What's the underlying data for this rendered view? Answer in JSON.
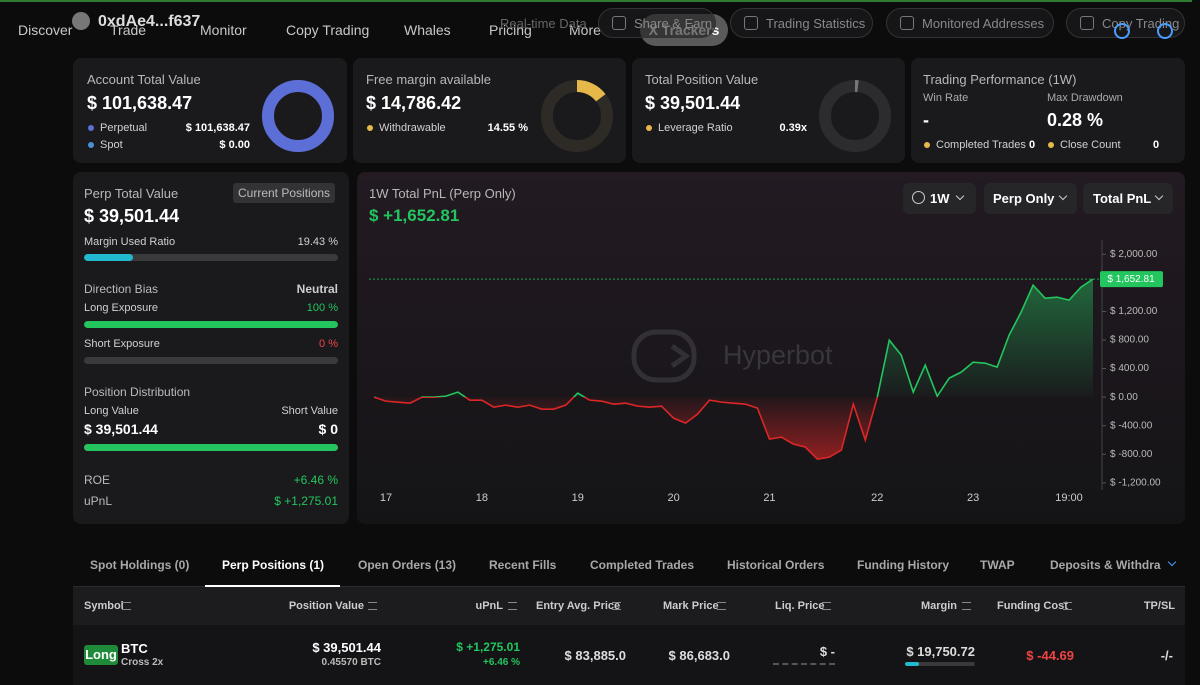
{
  "nav": {
    "user": "0xdAe4...f637",
    "items": [
      "Discover",
      "Trade",
      "Monitor",
      "Copy Trading",
      "Whales",
      "Pricing",
      "More"
    ],
    "active": "X Trackers",
    "actions": [
      "Real-time Data",
      "Share & Earn",
      "Trading Statistics",
      "Monitored Addresses",
      "Copy Trading"
    ]
  },
  "account": {
    "title": "Account Total Value",
    "value": "$ 101,638.47",
    "perpetual": {
      "label": "Perpetual",
      "value": 101638.47,
      "text": "$ 101,638.47"
    },
    "spot": {
      "label": "Spot",
      "value": 0,
      "text": "$ 0.00"
    }
  },
  "margin": {
    "title": "Free margin available",
    "value": "$ 14,786.42",
    "withdrawable": {
      "label": "Withdrawable",
      "value": 14.55,
      "text": "14.55 %"
    }
  },
  "position": {
    "title": "Total Position Value",
    "value": "$ 39,501.44",
    "leverage": {
      "label": "Leverage Ratio",
      "text": "0.39x"
    }
  },
  "performance": {
    "title": "Trading Performance (1W)",
    "win_rate": {
      "label": "Win Rate",
      "text": "-"
    },
    "max_drawdown": {
      "label": "Max Drawdown",
      "text": "0.28 %"
    },
    "completed_trades": {
      "label": "Completed Trades",
      "text": "0"
    },
    "close_count": {
      "label": "Close Count",
      "text": "0"
    }
  },
  "perp": {
    "title": "Perp Total Value",
    "button": "Current Positions",
    "value": "$ 39,501.44",
    "margin_used": {
      "label": "Margin Used Ratio",
      "value": 19.43,
      "text": "19.43 %"
    },
    "direction_bias": {
      "label": "Direction Bias",
      "text": "Neutral"
    },
    "long_exposure": {
      "label": "Long Exposure",
      "value": 100,
      "text": "100 %"
    },
    "short_exposure": {
      "label": "Short Exposure",
      "value": 0,
      "text": "0 %"
    },
    "distribution": {
      "title": "Position Distribution",
      "long": {
        "label": "Long Value",
        "value": 39501.44,
        "text": "$ 39,501.44"
      },
      "short": {
        "label": "Short Value",
        "value": 0,
        "text": "$ 0"
      }
    },
    "roe": {
      "label": "ROE",
      "text": "+6.46 %"
    },
    "upnl": {
      "label": "uPnL",
      "text": "$ +1,275.01"
    }
  },
  "chart_data": {
    "type": "area",
    "title": "1W Total PnL (Perp Only)",
    "subtitle": "$ +1,652.81",
    "filters": [
      "1W",
      "Perp Only",
      "Total PnL"
    ],
    "watermark": "Hyperbot",
    "x": [
      0,
      3,
      6,
      9,
      12,
      15,
      18,
      21,
      24,
      27,
      30,
      33,
      36,
      39,
      42,
      45,
      48,
      51,
      54,
      57,
      60,
      63,
      66,
      69,
      72,
      75,
      78,
      81,
      84,
      87,
      90,
      93,
      96,
      99,
      102,
      105,
      108,
      111,
      114,
      117,
      120,
      123,
      126,
      129,
      132,
      135,
      138,
      141,
      144,
      147,
      150,
      153,
      156,
      159,
      162,
      165,
      168,
      171,
      174,
      177,
      180
    ],
    "values": [
      0,
      -56,
      -70,
      -84,
      0,
      0,
      14,
      70,
      -42,
      -42,
      -140,
      -112,
      -140,
      -112,
      -168,
      -168,
      -112,
      56,
      -42,
      -56,
      -98,
      -84,
      -126,
      -140,
      -126,
      -294,
      -364,
      -238,
      -42,
      -70,
      -84,
      -98,
      -154,
      -588,
      -560,
      -658,
      -700,
      -868,
      -840,
      -742,
      -98,
      -602,
      0,
      798,
      588,
      70,
      448,
      14,
      266,
      350,
      490,
      476,
      420,
      868,
      1190,
      1568,
      1386,
      1400,
      1358,
      1540,
      1652.81
    ],
    "last_label": "$ 1,652.81",
    "colors": {
      "positive": "#22c55e",
      "negative": "#dc2626"
    },
    "xlim": [
      0,
      180
    ],
    "xticks": [
      {
        "value": 3,
        "label": "17"
      },
      {
        "value": 27,
        "label": "18"
      },
      {
        "value": 51,
        "label": "19"
      },
      {
        "value": 75,
        "label": "20"
      },
      {
        "value": 99,
        "label": "21"
      },
      {
        "value": 126,
        "label": "22"
      },
      {
        "value": 150,
        "label": "23"
      },
      {
        "value": 174,
        "label": "19:00"
      }
    ],
    "ylim": [
      -1300,
      2200
    ],
    "yticks": [
      {
        "value": 2000,
        "label": "$ 2,000.00"
      },
      {
        "value": 1200,
        "label": "$ 1,200.00"
      },
      {
        "value": 800,
        "label": "$ 800.00"
      },
      {
        "value": 400,
        "label": "$ 400.00"
      },
      {
        "value": 0,
        "label": "$ 0.00"
      },
      {
        "value": -400,
        "label": "$ -400.00"
      },
      {
        "value": -800,
        "label": "$ -800.00"
      },
      {
        "value": -1200,
        "label": "$ -1,200.00"
      }
    ]
  },
  "tabs": {
    "items": [
      "Spot Holdings (0)",
      "Perp Positions (1)",
      "Open Orders (13)",
      "Recent Fills",
      "Completed Trades",
      "Historical Orders",
      "Funding History",
      "TWAP",
      "Deposits & Withdra"
    ],
    "active": 1
  },
  "table": {
    "headers": [
      "Symbol",
      "Position Value",
      "uPnL",
      "Entry Avg. Price",
      "Mark Price",
      "Liq. Price",
      "Margin",
      "Funding Cost",
      "TP/SL"
    ],
    "row": {
      "side": "Long",
      "symbol": "BTC",
      "margin_mode": "Cross 2x",
      "position_value": "$ 39,501.44",
      "size": "0.45570 BTC",
      "upnl": "$ +1,275.01",
      "roe": "+6.46 %",
      "entry": "$ 83,885.0",
      "mark": "$ 86,683.0",
      "liq": "$ -",
      "margin": "$ 19,750.72",
      "funding": "$ -44.69",
      "tpsl": "-/-"
    }
  }
}
